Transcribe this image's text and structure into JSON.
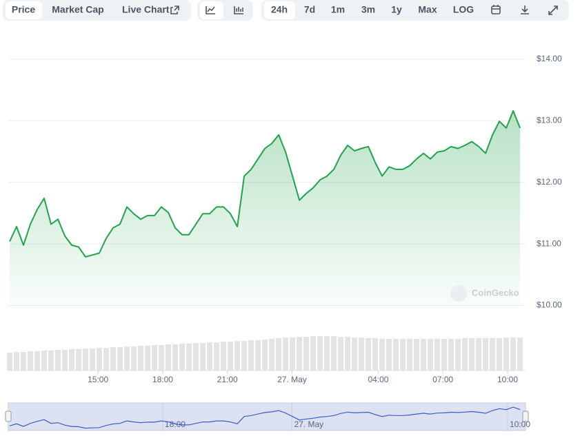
{
  "toolbar": {
    "tabs": [
      "Price",
      "Market Cap",
      "Live Chart"
    ],
    "ranges": [
      "24h",
      "7d",
      "1m",
      "3m",
      "1y",
      "Max",
      "LOG"
    ]
  },
  "chart_data": {
    "type": "line",
    "color": "#1fa34b",
    "x": [
      10.9,
      11.22,
      11.54,
      11.86,
      12.18,
      12.5,
      12.82,
      13.14,
      13.46,
      13.78,
      14.1,
      14.42,
      14.74,
      15.06,
      15.38,
      15.7,
      16.02,
      16.34,
      16.66,
      16.98,
      17.3,
      17.62,
      17.94,
      18.26,
      18.58,
      18.9,
      19.22,
      19.54,
      19.86,
      20.18,
      20.5,
      20.82,
      21.14,
      21.46,
      21.78,
      22.1,
      22.42,
      22.74,
      23.06,
      23.38,
      23.7,
      24.02,
      24.34,
      24.66,
      24.98,
      25.3,
      25.62,
      25.94,
      26.26,
      26.58,
      26.9,
      27.22,
      27.54,
      27.86,
      28.18,
      28.5,
      28.82,
      29.14,
      29.46,
      29.78,
      30.1,
      30.42,
      30.74,
      31.06,
      31.38,
      31.7,
      32.02,
      32.34,
      32.66,
      32.98,
      33.3,
      33.62,
      33.94,
      34.26,
      34.58
    ],
    "values": [
      11.04,
      11.28,
      10.98,
      11.32,
      11.56,
      11.74,
      11.32,
      11.4,
      11.13,
      10.98,
      10.95,
      10.79,
      10.82,
      10.85,
      11.09,
      11.26,
      11.32,
      11.6,
      11.49,
      11.4,
      11.46,
      11.46,
      11.6,
      11.51,
      11.26,
      11.15,
      11.15,
      11.32,
      11.49,
      11.49,
      11.6,
      11.6,
      11.49,
      11.28,
      12.1,
      12.21,
      12.38,
      12.55,
      12.63,
      12.77,
      12.49,
      12.1,
      11.71,
      11.82,
      11.91,
      12.04,
      12.1,
      12.21,
      12.44,
      12.6,
      12.51,
      12.55,
      12.58,
      12.32,
      12.1,
      12.25,
      12.21,
      12.21,
      12.27,
      12.38,
      12.47,
      12.38,
      12.49,
      12.51,
      12.58,
      12.55,
      12.6,
      12.66,
      12.58,
      12.47,
      12.77,
      12.99,
      12.88,
      13.16,
      12.88
    ],
    "volume": {
      "color": "#e3e3e3",
      "values": [
        26,
        27,
        27,
        28,
        28,
        29,
        29,
        30,
        30,
        31,
        31,
        32,
        32,
        33,
        33,
        34,
        34,
        35,
        35,
        36,
        36,
        37,
        37,
        38,
        38,
        39,
        39,
        40,
        40,
        41,
        41,
        42,
        42,
        43,
        43,
        44,
        44,
        45,
        46,
        47,
        48,
        48,
        49,
        49,
        50,
        50,
        50,
        50,
        49,
        49,
        48,
        48,
        47,
        47,
        46,
        46,
        46,
        46,
        46,
        46,
        46,
        46,
        46,
        46,
        46,
        46,
        47,
        47,
        47,
        47,
        47,
        47,
        48,
        48,
        48
      ]
    },
    "y2lim": [
      0,
      60
    ],
    "xlim": [
      10.9,
      34.8
    ],
    "xticks": [
      {
        "value": 15,
        "label": "15:00"
      },
      {
        "value": 18,
        "label": "18:00"
      },
      {
        "value": 21,
        "label": "21:00"
      },
      {
        "value": 24,
        "label": "27. May"
      },
      {
        "value": 28,
        "label": "04:00"
      },
      {
        "value": 31,
        "label": "07:00"
      },
      {
        "value": 34,
        "label": "10:00"
      }
    ],
    "ylim": [
      9.95,
      14.4
    ],
    "yticks": [
      {
        "value": 10,
        "label": "$10.00"
      },
      {
        "value": 11,
        "label": "$11.00"
      },
      {
        "value": 12,
        "label": "$12.00"
      },
      {
        "value": 13,
        "label": "$13.00"
      },
      {
        "value": 14,
        "label": "$14.00"
      }
    ],
    "grid": true,
    "watermark": "CoinGecko",
    "navigator": {
      "color": "#3b5bcc",
      "ylim": [
        10.6,
        13.4
      ],
      "xticks": [
        {
          "value": 18,
          "label": "18:00"
        },
        {
          "value": 24,
          "label": "27. May"
        },
        {
          "value": 34,
          "label": "10:00"
        }
      ]
    }
  }
}
